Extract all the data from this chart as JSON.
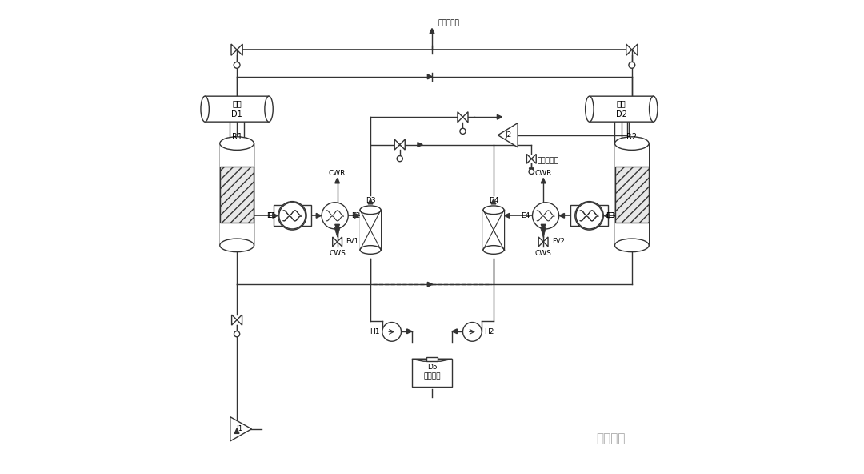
{
  "bg_color": "#ffffff",
  "line_color": "#333333",
  "watermark": "超级石化",
  "label_去上游换热": "去上游换热",
  "label_氢回收单元": "氢回收单元",
  "label_CWR1": "CWR",
  "label_CWS1": "CWS",
  "label_CWR2": "CWR",
  "label_CWS2": "CWS",
  "label_FV1": "FV1",
  "label_FV2": "FV2",
  "label_H1": "H1",
  "label_H2": "H2"
}
